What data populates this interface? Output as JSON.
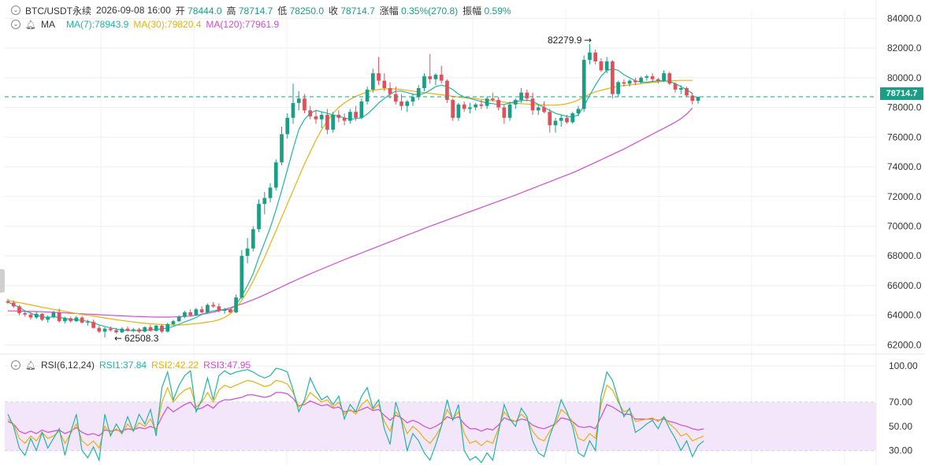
{
  "header": {
    "symbol": "BTC/USDT永续",
    "datetime": "2026-09-08 16:00",
    "open_label": "开",
    "open": "78444.0",
    "high_label": "高",
    "high": "78714.7",
    "low_label": "低",
    "low": "78250.0",
    "close_label": "收",
    "close": "78714.7",
    "change_label": "涨幅",
    "change": "0.35%(270.8)",
    "amp_label": "振幅",
    "amp": "0.59%"
  },
  "ma_row": {
    "label": "MA",
    "ma7": "MA(7):78943.9",
    "ma30": "MA(30):79820.4",
    "ma120": "MA(120):77961.9"
  },
  "rsi_row": {
    "label": "RSI(6,12,24)",
    "rsi1": "RSI1:37.84",
    "rsi2": "RSI2:42.22",
    "rsi3": "RSI3:47.95"
  },
  "colors": {
    "up": "#1a9e85",
    "down": "#e0505a",
    "ma7": "#1fb5a6",
    "ma30": "#e8b10c",
    "ma120": "#d14bd1",
    "rsi_band": "#f3e6fb"
  },
  "chart_data": {
    "type": "candlestick",
    "price_axis": {
      "ticks": [
        "84000.0",
        "82000.0",
        "80000.0",
        "78000.0",
        "76000.0",
        "74000.0",
        "72000.0",
        "70000.0",
        "68000.0",
        "66000.0",
        "64000.0",
        "62000.0"
      ],
      "ylim": [
        61600,
        84600
      ]
    },
    "rsi_axis": {
      "ticks": [
        "100.00",
        "70.00",
        "50.00",
        "30.00"
      ],
      "ylim": [
        18,
        102
      ],
      "band": [
        30,
        70
      ]
    },
    "last_price": "78714.7",
    "annotations": {
      "high": "82279.9",
      "low": "62508.3"
    },
    "candles": [
      [
        64950,
        65100,
        64750,
        64850
      ],
      [
        64850,
        65000,
        64500,
        64600
      ],
      [
        64600,
        64700,
        64000,
        64150
      ],
      [
        64150,
        64300,
        63900,
        64050
      ],
      [
        64050,
        64200,
        63700,
        63850
      ],
      [
        63850,
        64250,
        63750,
        64100
      ],
      [
        64100,
        64150,
        63600,
        63700
      ],
      [
        63700,
        64000,
        63500,
        63900
      ],
      [
        63900,
        64300,
        63800,
        64200
      ],
      [
        64200,
        64450,
        63500,
        63600
      ],
      [
        63600,
        63900,
        63450,
        63800
      ],
      [
        63800,
        63900,
        63500,
        63600
      ],
      [
        63600,
        63950,
        63550,
        63850
      ],
      [
        63850,
        63950,
        63450,
        63500
      ],
      [
        63500,
        63700,
        63300,
        63550
      ],
      [
        63550,
        63700,
        63100,
        63150
      ],
      [
        63150,
        63300,
        62800,
        62900
      ],
      [
        62900,
        63200,
        62508,
        63100
      ],
      [
        63100,
        63250,
        62900,
        63000
      ],
      [
        63000,
        63150,
        62750,
        62850
      ],
      [
        62850,
        63200,
        62800,
        63100
      ],
      [
        63100,
        63250,
        62900,
        62950
      ],
      [
        62950,
        63150,
        62850,
        63050
      ],
      [
        63050,
        63150,
        62800,
        62900
      ],
      [
        62900,
        63250,
        62850,
        63200
      ],
      [
        63200,
        63350,
        62900,
        62950
      ],
      [
        62950,
        63350,
        62900,
        63300
      ],
      [
        63300,
        63400,
        62800,
        62900
      ],
      [
        62900,
        63500,
        62850,
        63400
      ],
      [
        63400,
        63700,
        63300,
        63600
      ],
      [
        63600,
        64000,
        63550,
        63900
      ],
      [
        63900,
        64300,
        63800,
        64200
      ],
      [
        64200,
        64400,
        63900,
        64000
      ],
      [
        64000,
        64500,
        63950,
        64400
      ],
      [
        64400,
        64600,
        64100,
        64200
      ],
      [
        64200,
        64800,
        64150,
        64700
      ],
      [
        64700,
        64900,
        64500,
        64600
      ],
      [
        64600,
        64800,
        64200,
        64300
      ],
      [
        64300,
        64500,
        64100,
        64400
      ],
      [
        64400,
        64450,
        64150,
        64200
      ],
      [
        64200,
        65400,
        64150,
        65200
      ],
      [
        65200,
        68400,
        65100,
        68000
      ],
      [
        68000,
        69200,
        67500,
        68500
      ],
      [
        68500,
        70000,
        68300,
        69800
      ],
      [
        69800,
        71800,
        69600,
        71500
      ],
      [
        71500,
        72300,
        70800,
        71900
      ],
      [
        71900,
        72900,
        71600,
        72600
      ],
      [
        72600,
        74500,
        72400,
        74300
      ],
      [
        74300,
        76700,
        74100,
        76200
      ],
      [
        76200,
        77600,
        75900,
        77300
      ],
      [
        77300,
        79600,
        76900,
        78300
      ],
      [
        78300,
        79100,
        77800,
        78600
      ],
      [
        78600,
        78900,
        77600,
        77800
      ],
      [
        77800,
        78100,
        77200,
        77400
      ],
      [
        77400,
        77800,
        76900,
        77200
      ],
      [
        77200,
        77700,
        76600,
        77500
      ],
      [
        77500,
        77900,
        76200,
        76500
      ],
      [
        76500,
        77700,
        76300,
        77500
      ],
      [
        77500,
        77800,
        77000,
        77300
      ],
      [
        77300,
        77600,
        76800,
        77100
      ],
      [
        77100,
        77900,
        76900,
        77700
      ],
      [
        77700,
        78100,
        77100,
        77300
      ],
      [
        77300,
        78600,
        77200,
        78400
      ],
      [
        78400,
        79400,
        78200,
        79200
      ],
      [
        79200,
        80600,
        79000,
        80300
      ],
      [
        80300,
        81400,
        79500,
        79800
      ],
      [
        79800,
        80300,
        79100,
        79300
      ],
      [
        79300,
        79700,
        78600,
        78900
      ],
      [
        78900,
        79400,
        78200,
        78400
      ],
      [
        78400,
        78900,
        77800,
        78100
      ],
      [
        78100,
        78500,
        77700,
        78400
      ],
      [
        78400,
        78900,
        78100,
        78700
      ],
      [
        78700,
        79500,
        78500,
        79300
      ],
      [
        79300,
        80300,
        79100,
        80100
      ],
      [
        80100,
        81600,
        79600,
        79900
      ],
      [
        79900,
        80300,
        79500,
        80200
      ],
      [
        80200,
        80800,
        79600,
        79800
      ],
      [
        79800,
        79900,
        78300,
        78500
      ],
      [
        78500,
        78600,
        77100,
        77300
      ],
      [
        77300,
        78300,
        77100,
        78200
      ],
      [
        78200,
        78400,
        77700,
        77900
      ],
      [
        77900,
        78300,
        77600,
        78000
      ],
      [
        78000,
        78300,
        77800,
        78200
      ],
      [
        78200,
        78500,
        77900,
        78100
      ],
      [
        78100,
        78700,
        77900,
        78600
      ],
      [
        78600,
        79000,
        78400,
        78500
      ],
      [
        78500,
        78700,
        77800,
        78000
      ],
      [
        78000,
        78200,
        76900,
        77300
      ],
      [
        77300,
        78400,
        77100,
        78200
      ],
      [
        78200,
        78600,
        77900,
        78500
      ],
      [
        78500,
        79300,
        78300,
        79000
      ],
      [
        79000,
        79200,
        78400,
        78600
      ],
      [
        78600,
        79000,
        77500,
        77800
      ],
      [
        77800,
        78200,
        77500,
        78000
      ],
      [
        78000,
        78400,
        77600,
        77700
      ],
      [
        77700,
        77900,
        76300,
        76800
      ],
      [
        76800,
        77300,
        76300,
        77100
      ],
      [
        77100,
        77500,
        76700,
        77300
      ],
      [
        77300,
        77500,
        76900,
        77000
      ],
      [
        77000,
        77700,
        76900,
        77600
      ],
      [
        77600,
        78100,
        77400,
        77900
      ],
      [
        77900,
        81500,
        77700,
        81200
      ],
      [
        81200,
        82280,
        80900,
        81700
      ],
      [
        81700,
        81900,
        80900,
        81100
      ],
      [
        81100,
        81300,
        80400,
        80500
      ],
      [
        80500,
        81400,
        80300,
        81100
      ],
      [
        81100,
        81200,
        78600,
        78900
      ],
      [
        78900,
        79800,
        78700,
        79700
      ],
      [
        79700,
        79900,
        79400,
        79600
      ],
      [
        79600,
        79900,
        79400,
        79800
      ],
      [
        79800,
        80000,
        79500,
        79700
      ],
      [
        79700,
        80100,
        79600,
        80000
      ],
      [
        80000,
        80200,
        79800,
        80100
      ],
      [
        80100,
        80300,
        79700,
        79900
      ],
      [
        79900,
        80000,
        79600,
        79800
      ],
      [
        79800,
        80500,
        79700,
        80300
      ],
      [
        80300,
        80400,
        79500,
        79600
      ],
      [
        79600,
        79700,
        79000,
        79200
      ],
      [
        79200,
        79500,
        78900,
        79300
      ],
      [
        79300,
        79400,
        78700,
        78800
      ],
      [
        78800,
        79000,
        78200,
        78444
      ],
      [
        78444,
        78715,
        78250,
        78715
      ]
    ],
    "ma7": [
      64900,
      64700,
      64550,
      64300,
      64150,
      64000,
      63900,
      63850,
      63900,
      63850,
      63800,
      63720,
      63700,
      63650,
      63600,
      63500,
      63350,
      63250,
      63150,
      63080,
      63000,
      62980,
      62970,
      62980,
      63000,
      63010,
      63050,
      63080,
      63150,
      63250,
      63400,
      63550,
      63700,
      63850,
      64050,
      64200,
      64300,
      64350,
      64380,
      64400,
      64700,
      65300,
      66000,
      66800,
      67900,
      68900,
      69900,
      71100,
      72400,
      73800,
      75200,
      76500,
      77200,
      77600,
      77800,
      77700,
      77600,
      77500,
      77400,
      77300,
      77200,
      77250,
      77300,
      77550,
      77900,
      78300,
      78600,
      78900,
      79100,
      79100,
      79000,
      78900,
      78850,
      78950,
      79150,
      79400,
      79500,
      79400,
      79200,
      78900,
      78700,
      78600,
      78500,
      78400,
      78300,
      78250,
      78200,
      78200,
      78300,
      78400,
      78450,
      78500,
      78400,
      78200,
      78000,
      77800,
      77600,
      77500,
      77400,
      77350,
      77500,
      78100,
      78800,
      79500,
      80100,
      80500,
      80600,
      80500,
      80200,
      80000,
      79800,
      79700,
      79700,
      79750,
      79800,
      79800,
      79750,
      79600,
      79400,
      79200,
      78944
    ],
    "ma30": [
      65000,
      64920,
      64850,
      64780,
      64700,
      64620,
      64540,
      64470,
      64400,
      64330,
      64260,
      64190,
      64120,
      64060,
      64000,
      63940,
      63880,
      63820,
      63760,
      63700,
      63650,
      63600,
      63550,
      63500,
      63460,
      63430,
      63400,
      63380,
      63360,
      63350,
      63350,
      63370,
      63400,
      63440,
      63480,
      63540,
      63600,
      63700,
      63850,
      64100,
      64500,
      65000,
      65600,
      66300,
      67100,
      67900,
      68800,
      69700,
      70600,
      71500,
      72400,
      73300,
      74200,
      75000,
      75800,
      76500,
      77100,
      77600,
      78000,
      78300,
      78550,
      78750,
      78900,
      79050,
      79150,
      79200,
      79250,
      79250,
      79250,
      79200,
      79150,
      79100,
      79050,
      79000,
      78950,
      78900,
      78850,
      78800,
      78750,
      78700,
      78650,
      78650,
      78600,
      78550,
      78500,
      78450,
      78400,
      78350,
      78300,
      78280,
      78250,
      78230,
      78200,
      78180,
      78160,
      78150,
      78150,
      78180,
      78250,
      78350,
      78500,
      78700,
      78900,
      79050,
      79150,
      79250,
      79350,
      79420,
      79480,
      79520,
      79560,
      79600,
      79640,
      79680,
      79720,
      79760,
      79790,
      79810,
      79820,
      79820,
      79820
    ],
    "ma120": [
      64300,
      64290,
      64280,
      64270,
      64260,
      64250,
      64240,
      64220,
      64200,
      64180,
      64160,
      64140,
      64120,
      64100,
      64080,
      64060,
      64040,
      64020,
      64000,
      63980,
      63960,
      63940,
      63920,
      63910,
      63900,
      63890,
      63880,
      63880,
      63880,
      63890,
      63900,
      63920,
      63950,
      64000,
      64060,
      64130,
      64210,
      64300,
      64400,
      64510,
      64630,
      64760,
      64900,
      65050,
      65210,
      65380,
      65560,
      65740,
      65920,
      66100,
      66280,
      66450,
      66620,
      66790,
      66950,
      67110,
      67270,
      67430,
      67590,
      67750,
      67900,
      68050,
      68200,
      68350,
      68500,
      68650,
      68800,
      68950,
      69100,
      69250,
      69400,
      69550,
      69700,
      69850,
      70000,
      70140,
      70280,
      70420,
      70560,
      70700,
      70840,
      70980,
      71120,
      71260,
      71400,
      71540,
      71680,
      71820,
      71960,
      72100,
      72250,
      72400,
      72550,
      72700,
      72850,
      73000,
      73150,
      73300,
      73450,
      73600,
      73770,
      73940,
      74120,
      74300,
      74480,
      74660,
      74840,
      75020,
      75200,
      75400,
      75600,
      75800,
      76000,
      76200,
      76400,
      76600,
      76800,
      77000,
      77250,
      77550,
      77962
    ],
    "rsi1": [
      60,
      50,
      32,
      26,
      40,
      30,
      45,
      32,
      40,
      48,
      26,
      45,
      60,
      30,
      24,
      33,
      22,
      60,
      42,
      52,
      44,
      58,
      46,
      60,
      52,
      64,
      42,
      82,
      95,
      72,
      84,
      92,
      96,
      62,
      72,
      90,
      72,
      92,
      96,
      93,
      95,
      96,
      97,
      95,
      92,
      90,
      92,
      98,
      97,
      95,
      80,
      62,
      72,
      90,
      80,
      72,
      75,
      68,
      75,
      56,
      68,
      62,
      75,
      82,
      65,
      72,
      48,
      35,
      70,
      55,
      30,
      44,
      38,
      28,
      22,
      35,
      50,
      72,
      55,
      68,
      30,
      22,
      25,
      20,
      28,
      22,
      45,
      68,
      56,
      50,
      65,
      58,
      38,
      28,
      25,
      42,
      55,
      72,
      62,
      50,
      28,
      25,
      38,
      30,
      75,
      95,
      88,
      72,
      58,
      65,
      45,
      48,
      52,
      55,
      48,
      58,
      48,
      40,
      30,
      38,
      25,
      34,
      38
    ],
    "rsi2": [
      56,
      52,
      40,
      36,
      42,
      38,
      45,
      40,
      42,
      46,
      36,
      44,
      52,
      38,
      34,
      38,
      32,
      50,
      44,
      48,
      44,
      52,
      46,
      53,
      50,
      56,
      46,
      70,
      82,
      70,
      76,
      80,
      82,
      66,
      70,
      78,
      70,
      80,
      84,
      82,
      84,
      86,
      88,
      87,
      85,
      83,
      84,
      88,
      87,
      85,
      78,
      66,
      70,
      78,
      74,
      70,
      72,
      66,
      70,
      60,
      64,
      60,
      68,
      72,
      64,
      68,
      54,
      46,
      62,
      56,
      44,
      50,
      46,
      40,
      36,
      42,
      50,
      64,
      56,
      62,
      44,
      36,
      38,
      34,
      38,
      36,
      48,
      62,
      56,
      54,
      60,
      56,
      46,
      40,
      38,
      46,
      52,
      64,
      60,
      54,
      40,
      38,
      44,
      40,
      68,
      84,
      80,
      70,
      62,
      64,
      54,
      55,
      56,
      57,
      54,
      58,
      52,
      48,
      42,
      44,
      38,
      40,
      42
    ],
    "rsi3": [
      54,
      52,
      46,
      44,
      46,
      44,
      47,
      45,
      46,
      47,
      44,
      46,
      49,
      45,
      43,
      44,
      42,
      47,
      46,
      47,
      46,
      48,
      47,
      49,
      48,
      50,
      48,
      58,
      66,
      62,
      65,
      68,
      70,
      64,
      65,
      68,
      65,
      70,
      72,
      72,
      73,
      74,
      76,
      76,
      75,
      74,
      75,
      78,
      78,
      77,
      73,
      67,
      68,
      71,
      69,
      67,
      68,
      65,
      66,
      62,
      63,
      62,
      64,
      66,
      63,
      64,
      59,
      55,
      59,
      57,
      53,
      55,
      53,
      50,
      48,
      50,
      53,
      58,
      56,
      58,
      52,
      48,
      48,
      46,
      48,
      47,
      51,
      57,
      55,
      54,
      56,
      55,
      51,
      49,
      48,
      50,
      52,
      57,
      56,
      54,
      50,
      49,
      50,
      48,
      58,
      68,
      66,
      63,
      60,
      60,
      56,
      56,
      56,
      56,
      55,
      56,
      54,
      53,
      51,
      50,
      48,
      47,
      48
    ]
  }
}
